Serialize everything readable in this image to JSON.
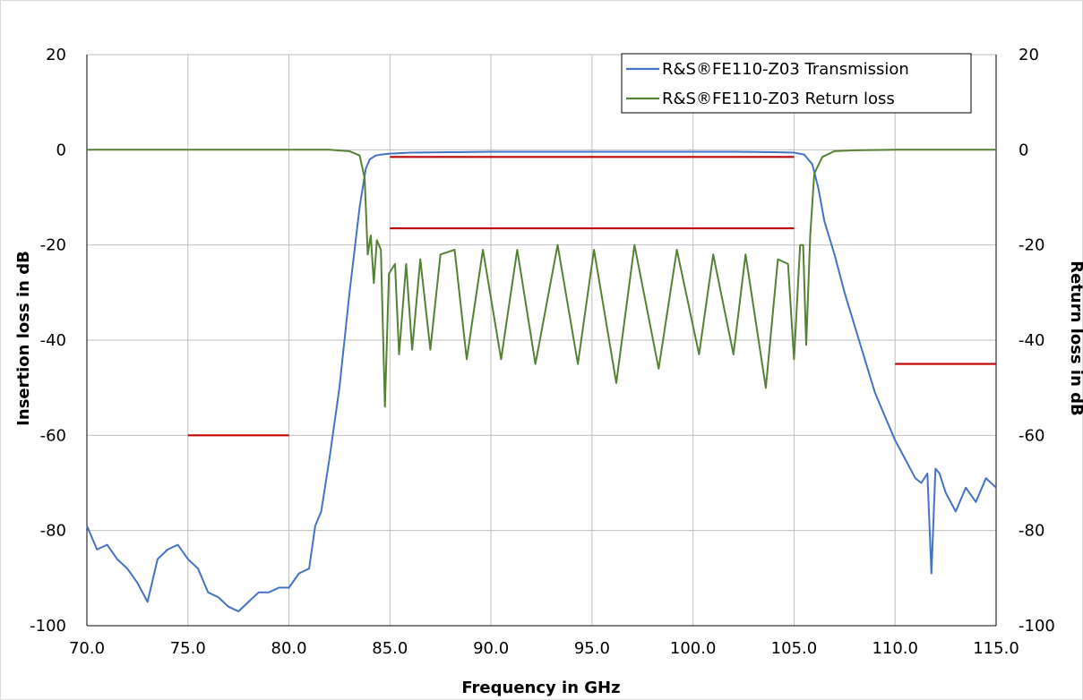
{
  "chart_data": {
    "type": "line",
    "xlabel": "Frequency in GHz",
    "ylabel": "Insertion loss in dB",
    "y2label": "Return loss in dB",
    "xlim": [
      70,
      115
    ],
    "ylim": [
      -100,
      20
    ],
    "xticks": [
      70,
      75,
      80,
      85,
      90,
      95,
      100,
      105,
      110,
      115
    ],
    "xtick_labels": [
      "70.0",
      "75.0",
      "80.0",
      "85.0",
      "90.0",
      "95.0",
      "100.0",
      "105.0",
      "110.0",
      "115.0"
    ],
    "yticks": [
      20,
      0,
      -20,
      -40,
      -60,
      -80,
      -100
    ],
    "ytick_labels": [
      "20",
      "0",
      "-20",
      "-40",
      "-60",
      "-80",
      "-100"
    ],
    "grid": true,
    "legend": "top-right",
    "colors": {
      "transmission": "#4472C4",
      "return_loss": "#548235",
      "limits": "#C00000",
      "grid": "#BFBFBF"
    },
    "series": [
      {
        "name": "R&S®FE110-Z03 Transmission",
        "x": [
          70,
          70.5,
          71,
          71.5,
          72,
          72.5,
          73,
          73.5,
          74,
          74.5,
          75,
          75.5,
          76,
          76.5,
          77,
          77.5,
          78,
          78.5,
          79,
          79.5,
          80,
          80.5,
          81,
          81.3,
          81.6,
          82,
          82.5,
          83,
          83.5,
          83.8,
          84,
          84.3,
          84.6,
          85,
          86,
          88,
          90,
          92,
          94,
          96,
          98,
          100,
          102,
          104,
          105,
          105.5,
          105.9,
          106.2,
          106.5,
          107,
          107.5,
          108,
          108.5,
          109,
          109.5,
          110,
          110.5,
          111,
          111.3,
          111.6,
          111.8,
          112,
          112.2,
          112.5,
          113,
          113.5,
          114,
          114.5,
          115
        ],
        "values": [
          -79,
          -84,
          -83,
          -86,
          -88,
          -91,
          -95,
          -86,
          -84,
          -83,
          -86,
          -88,
          -93,
          -94,
          -96,
          -97,
          -95,
          -93,
          -93,
          -92,
          -92,
          -89,
          -88,
          -79,
          -76,
          -65,
          -50,
          -30,
          -12,
          -4,
          -2,
          -1.2,
          -1,
          -0.8,
          -0.6,
          -0.5,
          -0.4,
          -0.4,
          -0.4,
          -0.4,
          -0.4,
          -0.4,
          -0.4,
          -0.5,
          -0.6,
          -1,
          -3,
          -8,
          -15,
          -22,
          -30,
          -37,
          -44,
          -51,
          -56,
          -61,
          -65,
          -69,
          -70,
          -68,
          -89,
          -67,
          -68,
          -72,
          -76,
          -71,
          -74,
          -69,
          -71
        ]
      },
      {
        "name": "R&S®FE110-Z03 Return loss",
        "x": [
          70,
          75,
          80,
          82,
          83,
          83.5,
          83.75,
          83.9,
          84.05,
          84.2,
          84.35,
          84.55,
          84.75,
          84.95,
          85.25,
          85.45,
          85.8,
          86.1,
          86.5,
          87,
          87.5,
          88.2,
          88.8,
          89.6,
          90.5,
          91.3,
          92.2,
          93.3,
          94.3,
          95.1,
          96.2,
          97.1,
          98.3,
          99.2,
          100.3,
          101.0,
          102.0,
          102.6,
          103.6,
          104.2,
          104.7,
          105.0,
          105.3,
          105.45,
          105.6,
          105.8,
          106.0,
          106.4,
          107,
          108,
          110,
          115
        ],
        "values": [
          0,
          0,
          0,
          0,
          -0.3,
          -1.2,
          -6,
          -22,
          -18,
          -28,
          -19,
          -21,
          -54,
          -26,
          -24,
          -43,
          -24,
          -42,
          -23,
          -42,
          -22,
          -21,
          -44,
          -21,
          -44,
          -21,
          -45,
          -20,
          -45,
          -21,
          -49,
          -20,
          -46,
          -21,
          -43,
          -22,
          -43,
          -22,
          -50,
          -23,
          -24,
          -44,
          -20,
          -20,
          -41,
          -18,
          -5,
          -1.5,
          -0.3,
          -0.1,
          0,
          0
        ]
      }
    ],
    "limit_lines": [
      {
        "x": [
          75,
          80
        ],
        "y": -60
      },
      {
        "x": [
          85,
          105
        ],
        "y": -1.5
      },
      {
        "x": [
          85,
          105
        ],
        "y": -16.5
      },
      {
        "x": [
          110,
          115
        ],
        "y": -45
      }
    ]
  }
}
